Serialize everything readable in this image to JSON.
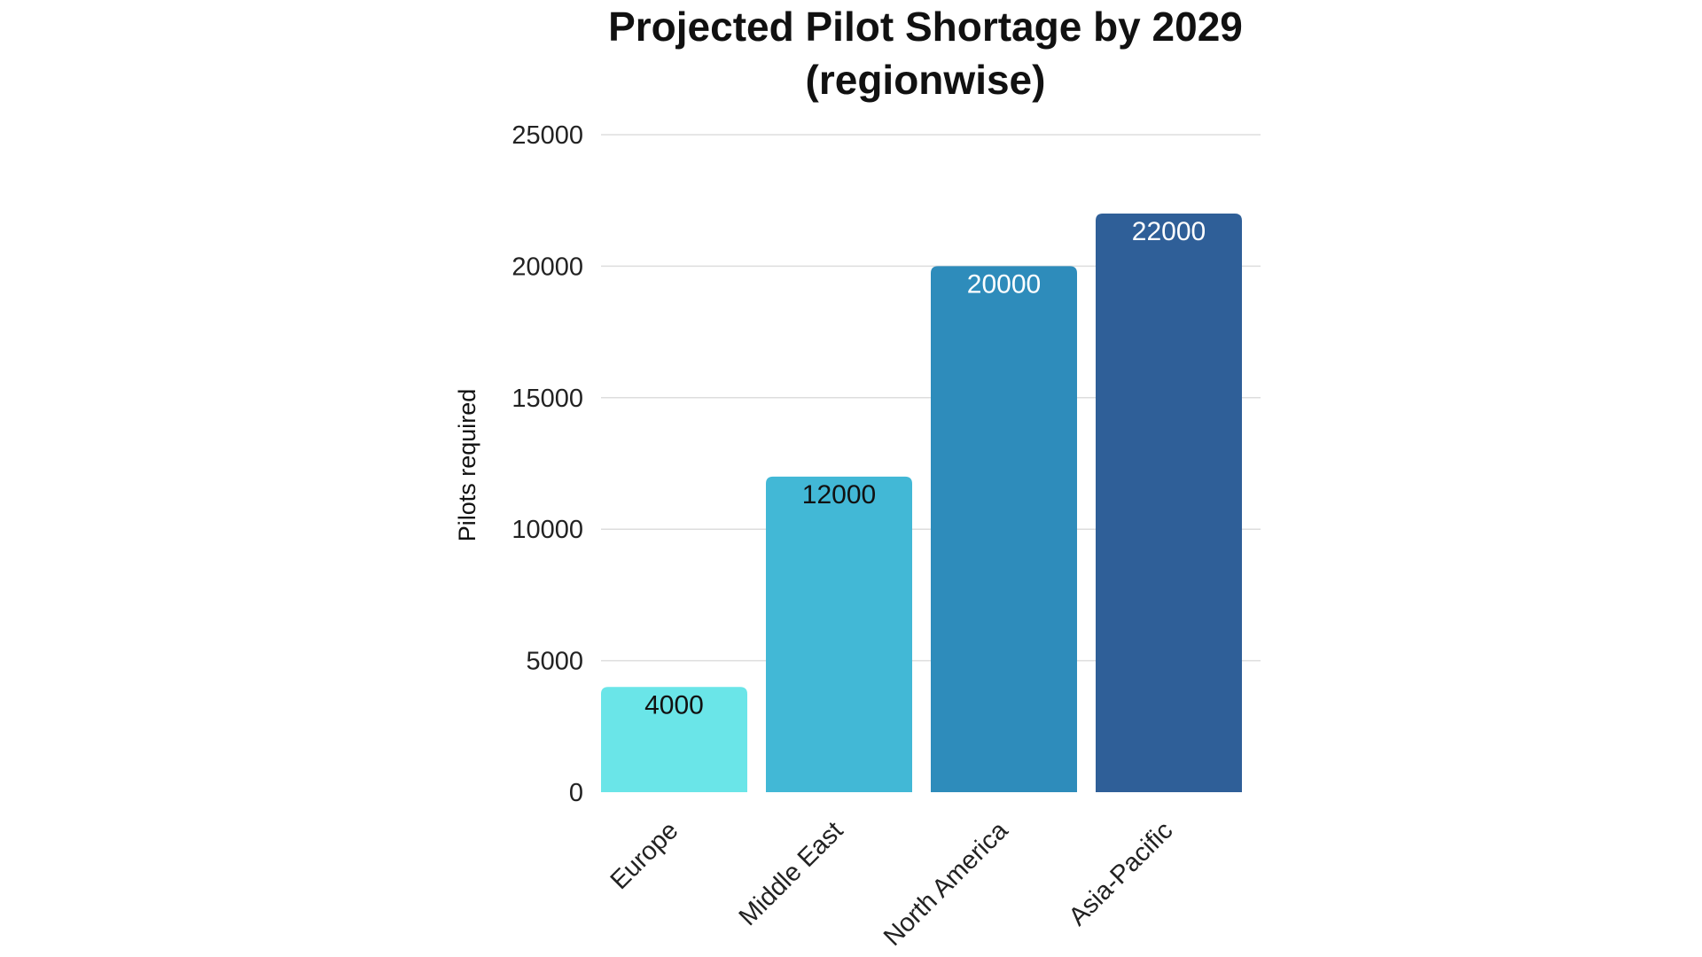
{
  "chart_data": {
    "type": "bar",
    "title_lines": [
      "Projected Pilot Shortage by 2029",
      "(regionwise)"
    ],
    "xlabel": "",
    "ylabel": "Pilots required",
    "categories": [
      "Europe",
      "Middle East",
      "North America",
      "Asia-Pacific"
    ],
    "values": [
      4000,
      12000,
      20000,
      22000
    ],
    "data_labels": [
      "4000",
      "12000",
      "20000",
      "22000"
    ],
    "ylim": [
      0,
      25000
    ],
    "yticks": [
      0,
      5000,
      10000,
      15000,
      20000,
      25000
    ],
    "ytick_labels": [
      "0",
      "5000",
      "10000",
      "15000",
      "20000",
      "25000"
    ],
    "grid": true,
    "legend": "none",
    "bar_colors": [
      "#6ae5e8",
      "#42b8d6",
      "#2e8cbb",
      "#2f5f98"
    ],
    "data_label_colors": [
      "#111111",
      "#111111",
      "#ffffff",
      "#ffffff"
    ],
    "grid_color": "#dddddd"
  }
}
